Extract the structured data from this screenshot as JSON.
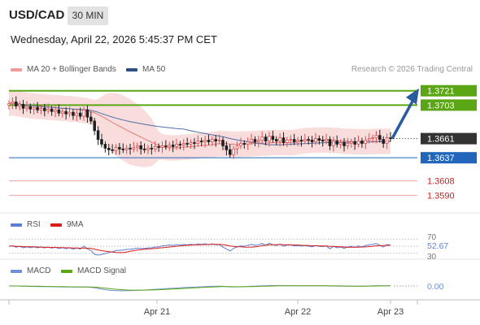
{
  "header": {
    "symbol": "USD/CAD",
    "timeframe": "30 MIN",
    "datetime": "Wednesday, April 22, 2026 5:45:37 PM CET",
    "credit": "Research © 2026 Trading Central"
  },
  "legends": {
    "ma20_bb": "MA 20 + Bollinger Bands",
    "ma50": "MA 50",
    "rsi": "RSI",
    "rsi_ma": "9MA",
    "macd": "MACD",
    "macd_signal": "MACD Signal"
  },
  "colors": {
    "up": "#e05050",
    "down": "#1f1f1f",
    "bb_band": "#f8d6d6",
    "ma20": "#e77b7b",
    "ma50": "#4f6fa8",
    "resistance": "#5aa615",
    "support": "#2266bb",
    "current": "#333333",
    "lower": "#e47a7a",
    "arrow": "#2a5aa0",
    "rsi": "#5c7fd4",
    "rsi_ma": "#d81b1b",
    "macd": "#6f8fd8",
    "macd_signal": "#5aa615"
  },
  "chart_data": [
    {
      "type": "candlestick",
      "ylim": [
        1.3572,
        1.3738
      ],
      "x_ticks": [
        "Apr 21",
        "Apr 22",
        "Apr 23"
      ],
      "levels": [
        {
          "label": "1.3721",
          "value": 1.3721,
          "kind": "resistance"
        },
        {
          "label": "1.3703",
          "value": 1.3703,
          "kind": "resistance"
        },
        {
          "label": "1.3661",
          "value": 1.3661,
          "kind": "current"
        },
        {
          "label": "1.3637",
          "value": 1.3637,
          "kind": "support"
        },
        {
          "label": "1.3608",
          "value": 1.3608,
          "kind": "lower"
        },
        {
          "label": "1.3590",
          "value": 1.359,
          "kind": "lower"
        }
      ],
      "projection": {
        "from": 1.3661,
        "to": 1.3721
      },
      "closes": [
        1.3705,
        1.3707,
        1.3702,
        1.3704,
        1.3699,
        1.3701,
        1.3698,
        1.37,
        1.3697,
        1.3699,
        1.3696,
        1.3698,
        1.3695,
        1.3697,
        1.3693,
        1.3695,
        1.3692,
        1.3694,
        1.369,
        1.3693,
        1.3689,
        1.3697,
        1.3688,
        1.3683,
        1.3671,
        1.366,
        1.3654,
        1.3649,
        1.3647,
        1.3646,
        1.365,
        1.3648,
        1.3647,
        1.3649,
        1.3648,
        1.365,
        1.3652,
        1.3648,
        1.3647,
        1.3649,
        1.3648,
        1.3651,
        1.365,
        1.3652,
        1.3651,
        1.3653,
        1.3651,
        1.3654,
        1.3653,
        1.3655,
        1.3654,
        1.3656,
        1.3655,
        1.3658,
        1.3657,
        1.3659,
        1.3657,
        1.366,
        1.3658,
        1.3659,
        1.3652,
        1.3647,
        1.3641,
        1.3648,
        1.3652,
        1.3655,
        1.3654,
        1.3657,
        1.366,
        1.3657,
        1.3659,
        1.3663,
        1.3658,
        1.3664,
        1.366,
        1.3658,
        1.3662,
        1.3656,
        1.3659,
        1.366,
        1.3657,
        1.3659,
        1.3658,
        1.366,
        1.3659,
        1.3657,
        1.3661,
        1.3659,
        1.3658,
        1.366,
        1.3652,
        1.3658,
        1.3654,
        1.3656,
        1.3652,
        1.3655,
        1.3657,
        1.3654,
        1.3658,
        1.3655,
        1.3659,
        1.3661,
        1.3662,
        1.3665,
        1.366,
        1.3655,
        1.3662,
        1.3661
      ],
      "rsi": {
        "ylim": [
          25,
          75
        ],
        "ticks": [
          "70",
          "30"
        ],
        "last_label": "52.67"
      },
      "macd": {
        "last_label": "0.00"
      }
    }
  ]
}
